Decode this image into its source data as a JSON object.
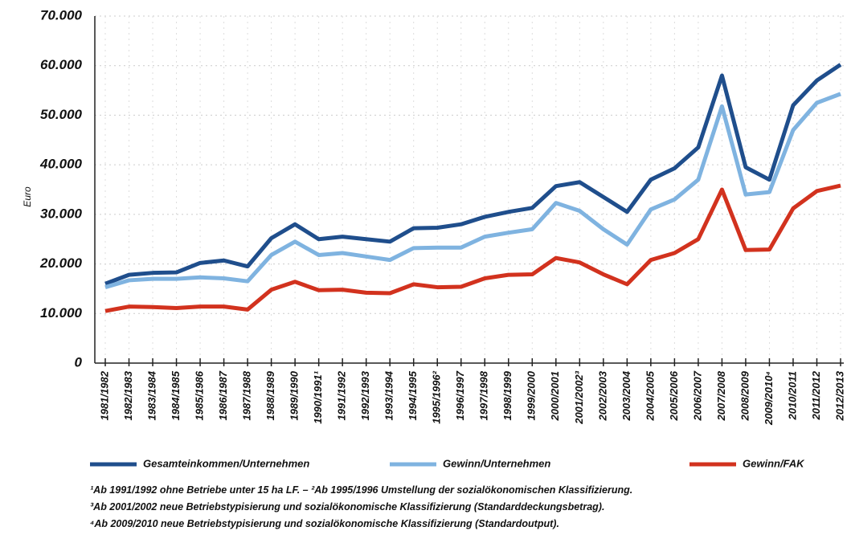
{
  "chart_data": {
    "type": "line",
    "y_label": "Euro",
    "categories": [
      "1981/1982",
      "1982/1983",
      "1983/1984",
      "1984/1985",
      "1985/1986",
      "1986/1987",
      "1987/1988",
      "1988/1989",
      "1989/1990",
      "1990/1991¹",
      "1991/1992",
      "1992/1993",
      "1993/1994",
      "1994/1995",
      "1995/1996²",
      "1996/1997",
      "1997/1998",
      "1998/1999",
      "1999/2000",
      "2000/2001",
      "2001/2002³",
      "2002/2003",
      "2003/2004",
      "2004/2005",
      "2005/2006",
      "2006/2007",
      "2007/2008",
      "2008/2009",
      "2009/2010⁴",
      "2010/2011",
      "2011/2012",
      "2012/2013"
    ],
    "series": [
      {
        "name": "Gesamteinkommen/Unternehmen",
        "color": "#1f4e8c",
        "values": [
          16000,
          17800,
          18200,
          18300,
          20200,
          20700,
          19500,
          25200,
          28000,
          25000,
          25500,
          25000,
          24500,
          27200,
          27300,
          28000,
          29500,
          30500,
          31300,
          35700,
          36500,
          33500,
          30500,
          37000,
          39300,
          43500,
          58000,
          39500,
          37000,
          52000,
          57000,
          60200
        ]
      },
      {
        "name": "Gewinn/Unternehmen",
        "color": "#7fb3e0",
        "values": [
          15300,
          16700,
          17000,
          17000,
          17300,
          17100,
          16500,
          21800,
          24500,
          21800,
          22200,
          21500,
          20800,
          23200,
          23300,
          23300,
          25500,
          26300,
          27000,
          32300,
          30700,
          27000,
          23900,
          31000,
          33000,
          37000,
          51800,
          34000,
          34500,
          47000,
          52500,
          54300
        ]
      },
      {
        "name": "Gewinn/FAK",
        "color": "#d2321e",
        "values": [
          10500,
          11400,
          11300,
          11100,
          11400,
          11400,
          10800,
          14800,
          16400,
          14700,
          14800,
          14200,
          14100,
          15900,
          15300,
          15400,
          17100,
          17800,
          17900,
          21200,
          20300,
          17900,
          15900,
          20800,
          22200,
          25000,
          35000,
          22800,
          22900,
          31200,
          34700,
          35800
        ]
      }
    ],
    "ylim": [
      0,
      70000
    ],
    "yticks": [
      0,
      {
        "value": 10000,
        "label": "10.000"
      },
      {
        "value": 20000,
        "label": "20.000"
      },
      {
        "value": 30000,
        "label": "30.000"
      },
      {
        "value": 40000,
        "label": "40.000"
      },
      {
        "value": 50000,
        "label": "50.000"
      },
      {
        "value": 60000,
        "label": "60.000"
      },
      {
        "value": 70000,
        "label": "70.000"
      }
    ],
    "grid": true,
    "footnotes": [
      "¹Ab 1991/1992 ohne Betriebe unter 15 ha LF. – ²Ab 1995/1996 Umstellung der sozialökonomischen Klassifizierung.",
      "³Ab 2001/2002 neue Betriebstypisierung und sozialökonomische Klassifizierung (Standarddeckungsbetrag).",
      "⁴Ab 2009/2010 neue Betriebstypisierung und sozialökonomische Klassifizierung (Standardoutput)."
    ]
  }
}
